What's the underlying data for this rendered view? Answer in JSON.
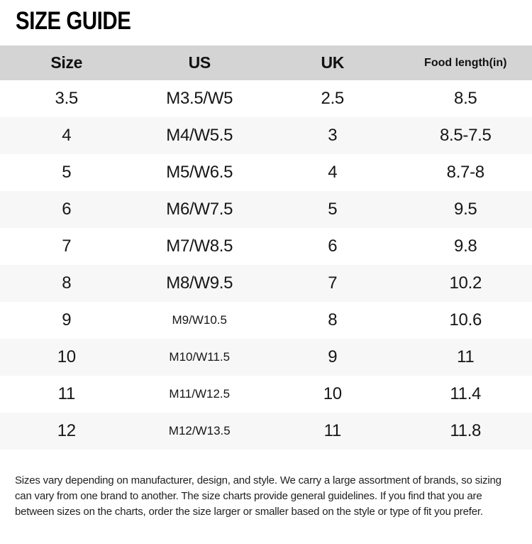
{
  "page": {
    "title": "SIZE GUIDE"
  },
  "table": {
    "columns": [
      "Size",
      "US",
      "UK",
      "Food length(in)"
    ],
    "rows": [
      {
        "size": "3.5",
        "us": "M3.5/W5",
        "uk": "2.5",
        "length": "8.5"
      },
      {
        "size": "4",
        "us": "M4/W5.5",
        "uk": "3",
        "length": "8.5-7.5"
      },
      {
        "size": "5",
        "us": "M5/W6.5",
        "uk": "4",
        "length": "8.7-8"
      },
      {
        "size": "6",
        "us": "M6/W7.5",
        "uk": "5",
        "length": "9.5"
      },
      {
        "size": "7",
        "us": "M7/W8.5",
        "uk": "6",
        "length": "9.8"
      },
      {
        "size": "8",
        "us": "M8/W9.5",
        "uk": "7",
        "length": "10.2"
      },
      {
        "size": "9",
        "us": "M9/W10.5",
        "uk": "8",
        "length": "10.6"
      },
      {
        "size": "10",
        "us": "M10/W11.5",
        "uk": "9",
        "length": "11"
      },
      {
        "size": "11",
        "us": "M11/W12.5",
        "uk": "10",
        "length": "11.4"
      },
      {
        "size": "12",
        "us": "M12/W13.5",
        "uk": "11",
        "length": "11.8"
      }
    ]
  },
  "footer": {
    "lines": [
      "Sizes vary depending on manufacturer, design, and style. We carry a large assortment of brands, so sizing",
      "can vary from one brand to another. The size charts provide general guidelines. If you find that you are",
      "between sizes on the charts, order the size larger or smaller based on the style or type of fit you prefer."
    ]
  },
  "colors": {
    "header_bg": "#d4d4d4",
    "row_alt_bg": "#f7f7f7",
    "text": "#161616",
    "page_bg": "#ffffff"
  }
}
